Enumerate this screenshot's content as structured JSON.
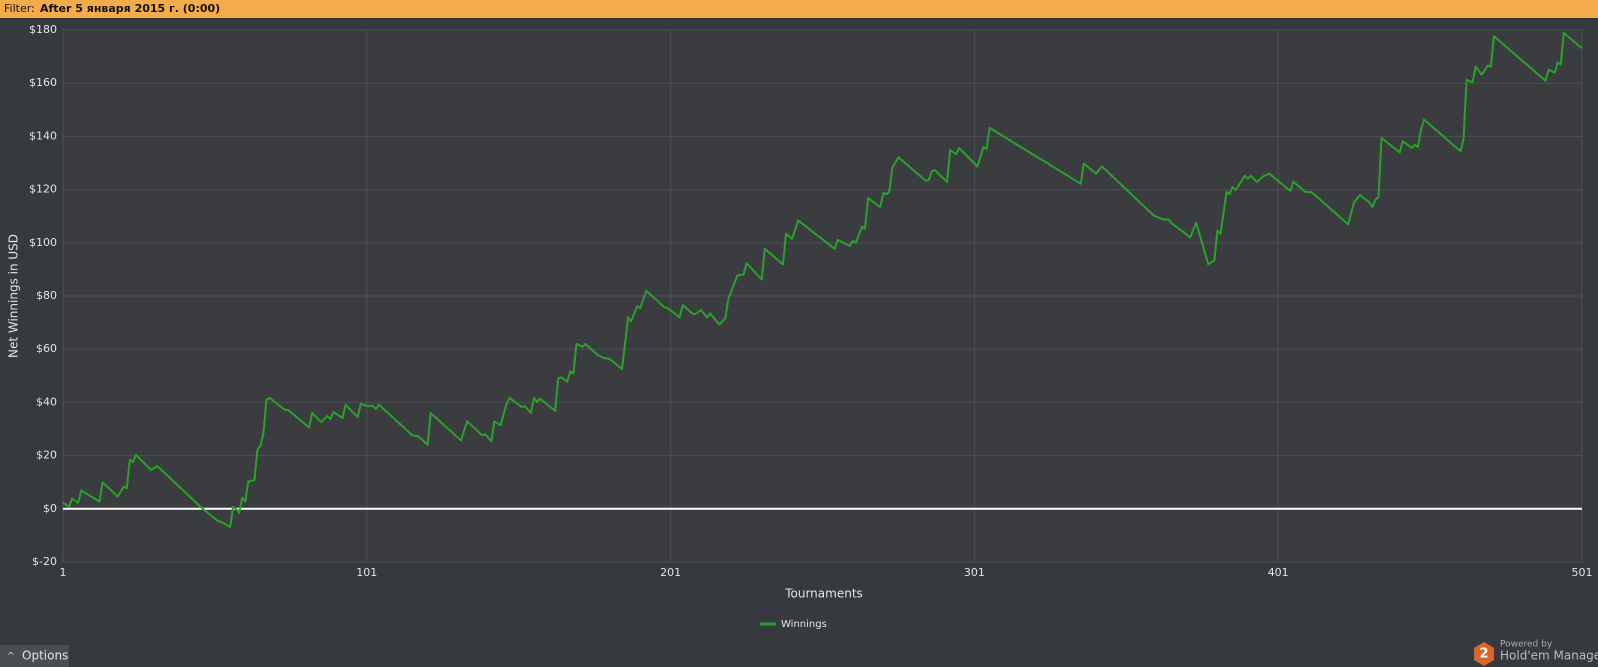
{
  "ui": {
    "filter_label": "Filter:",
    "filter_value": "After 5 января 2015 г. (0:00)",
    "options": "Options",
    "powered_by": "Powered by",
    "brand": "Hold'em Manager",
    "logo": "2"
  },
  "chart_data": {
    "type": "line",
    "x_label": "Tournaments",
    "y_label": "Net Winnings in USD",
    "x": [
      1,
      3,
      4,
      6,
      7,
      13,
      14,
      19,
      21,
      22,
      23,
      24,
      25,
      30,
      32,
      47,
      52,
      54,
      56,
      57,
      58,
      59,
      60,
      61,
      62,
      64,
      65,
      66,
      67,
      68,
      69,
      74,
      75,
      82,
      83,
      86,
      88,
      89,
      90,
      93,
      94,
      98,
      99,
      101,
      103,
      104,
      105,
      116,
      118,
      121,
      122,
      132,
      134,
      139,
      140,
      142,
      143,
      145,
      147,
      148,
      152,
      153,
      155,
      156,
      157,
      158,
      163,
      164,
      165,
      167,
      168,
      169,
      170,
      172,
      173,
      177,
      179,
      181,
      185,
      186,
      187,
      188,
      190,
      191,
      193,
      199,
      200,
      204,
      205,
      208,
      209,
      211,
      213,
      214,
      217,
      219,
      220,
      223,
      225,
      226,
      231,
      232,
      238,
      239,
      241,
      243,
      255,
      256,
      260,
      261,
      262,
      264,
      265,
      266,
      270,
      271,
      272,
      273,
      274,
      276,
      285,
      286,
      287,
      288,
      292,
      293,
      295,
      296,
      302,
      304,
      305,
      306,
      336,
      337,
      341,
      343,
      360,
      363,
      365,
      366,
      371,
      372,
      374,
      378,
      380,
      381,
      382,
      384,
      385,
      386,
      387,
      390,
      391,
      392,
      394,
      396,
      398,
      405,
      406,
      410,
      412,
      424,
      426,
      428,
      429,
      431,
      432,
      433,
      434,
      435,
      441,
      442,
      445,
      446,
      447,
      448,
      449,
      461,
      462,
      463,
      465,
      466,
      468,
      470,
      471,
      472,
      489,
      490,
      492,
      493,
      494,
      495,
      501
    ],
    "series": [
      {
        "name": "Winnings",
        "color": "#2aa12a",
        "values": [
          2.3,
          0.8,
          3.8,
          2.3,
          6.9,
          2.7,
          10,
          4.6,
          8.4,
          7.7,
          18.4,
          17.6,
          20.3,
          14.6,
          16.1,
          0,
          -4.6,
          -5.4,
          -6.9,
          0.8,
          0,
          -1.5,
          4.2,
          2.7,
          10.3,
          10.7,
          22.2,
          23.7,
          28.7,
          41,
          41.7,
          37.2,
          37.2,
          30.6,
          36,
          32.6,
          34.9,
          33.7,
          36.4,
          34.1,
          39.1,
          34.5,
          39.4,
          38.7,
          38.7,
          37.5,
          39.1,
          27.6,
          27.2,
          24.1,
          36,
          25.7,
          32.9,
          27.6,
          28,
          25.3,
          32.9,
          31.4,
          39.4,
          41.7,
          38.3,
          38.7,
          36,
          41.7,
          40.2,
          41.4,
          36.8,
          49,
          49.4,
          47.9,
          51.7,
          50.9,
          62,
          60.9,
          62,
          57.8,
          56.7,
          56.3,
          52.5,
          62,
          72,
          70.5,
          76.2,
          75.4,
          82,
          75.8,
          75.4,
          72,
          76.6,
          73.5,
          73.2,
          74.7,
          72,
          73.5,
          69.3,
          71.6,
          78.9,
          87.7,
          88.1,
          92.3,
          86.2,
          97.7,
          91.9,
          103.4,
          101.5,
          108.4,
          97.7,
          101.1,
          98.8,
          100.7,
          100,
          106.1,
          105.3,
          116.8,
          113.4,
          118.7,
          118.3,
          119.1,
          128.3,
          132.1,
          123.3,
          123.7,
          126.9,
          127.3,
          122.9,
          134.8,
          133.3,
          135.6,
          128.7,
          136,
          135.2,
          143.2,
          122.2,
          129.8,
          126,
          128.7,
          110.3,
          108.8,
          108.8,
          107.2,
          103,
          101.9,
          107.6,
          91.9,
          93.4,
          104.6,
          103.4,
          119.1,
          118.3,
          121,
          119.8,
          125.2,
          124.1,
          125.2,
          122.9,
          124.9,
          126,
          119.5,
          122.9,
          119.1,
          119.1,
          106.9,
          115.3,
          118,
          116.8,
          115.3,
          113.4,
          116.1,
          117.2,
          139.4,
          134,
          138.2,
          135.6,
          136.8,
          136,
          142.5,
          146.3,
          134.4,
          139,
          161.2,
          160.4,
          166.2,
          163.2,
          166.6,
          166.2,
          177.7,
          160.9,
          165.1,
          163.9,
          167.8,
          167,
          178.9,
          173.1
        ]
      }
    ],
    "xlim": [
      1,
      501
    ],
    "ylim": [
      -20,
      180
    ],
    "xticks": [
      1,
      101,
      201,
      301,
      401,
      501
    ],
    "yticks": [
      {
        "value": -20,
        "label": "$-20"
      },
      {
        "value": 0,
        "label": "$0"
      },
      {
        "value": 20,
        "label": "$20"
      },
      {
        "value": 40,
        "label": "$40"
      },
      {
        "value": 60,
        "label": "$60"
      },
      {
        "value": 80,
        "label": "$80"
      },
      {
        "value": 100,
        "label": "$100"
      },
      {
        "value": 120,
        "label": "$120"
      },
      {
        "value": 140,
        "label": "$140"
      },
      {
        "value": 160,
        "label": "$160"
      },
      {
        "value": 180,
        "label": "$180"
      }
    ],
    "grid": true,
    "legend": "bottom",
    "reference_line": 0
  }
}
